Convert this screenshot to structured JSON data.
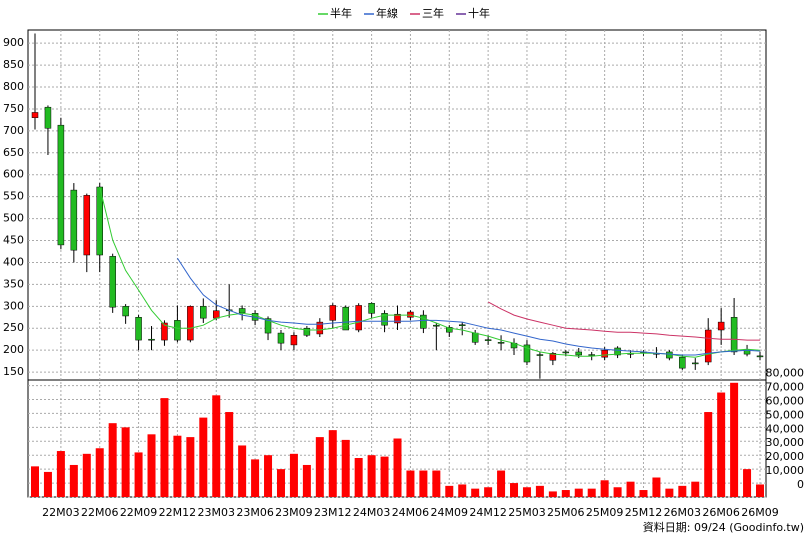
{
  "chart_data": {
    "type": "candlestick",
    "categories": [
      null,
      null,
      "22M03",
      null,
      null,
      "22M06",
      null,
      null,
      "22M09",
      null,
      null,
      "22M12",
      null,
      null,
      "23M03",
      null,
      null,
      "23M06",
      null,
      null,
      "23M09",
      null,
      null,
      "23M12",
      null,
      null,
      "24M03",
      null,
      null,
      "24M06",
      null,
      null,
      "24M09",
      null,
      null,
      "24M12",
      null,
      null,
      "25M03",
      null,
      null,
      "25M06",
      null,
      null,
      "25M09",
      null,
      null,
      "25M12",
      null,
      null,
      "26M03",
      null,
      null,
      "26M06",
      null,
      null,
      "26M09"
    ],
    "open": [
      730,
      754,
      713,
      565,
      417,
      572,
      414,
      300,
      275,
      225,
      223,
      268,
      223,
      300,
      273,
      292,
      295,
      284,
      272,
      239,
      212,
      250,
      237,
      268,
      298,
      246,
      307,
      284,
      262,
      275,
      280,
      257,
      252,
      258,
      239,
      224,
      218,
      216,
      212,
      190,
      177,
      196,
      196,
      190,
      184,
      205,
      193,
      196,
      193,
      196,
      184,
      171,
      173,
      246,
      275,
      202,
      187
    ],
    "high": [
      922,
      758,
      730,
      581,
      557,
      581,
      420,
      305,
      280,
      255,
      268,
      302,
      302,
      318,
      314,
      350,
      302,
      291,
      277,
      246,
      241,
      255,
      273,
      307,
      302,
      307,
      309,
      291,
      302,
      291,
      291,
      262,
      257,
      264,
      246,
      234,
      234,
      227,
      223,
      196,
      196,
      200,
      205,
      196,
      207,
      209,
      200,
      200,
      207,
      200,
      189,
      182,
      273,
      296,
      319,
      212,
      196
    ],
    "low": [
      703,
      645,
      430,
      400,
      378,
      378,
      285,
      260,
      200,
      200,
      210,
      218,
      218,
      262,
      268,
      274,
      268,
      257,
      223,
      200,
      200,
      230,
      230,
      250,
      246,
      241,
      273,
      241,
      246,
      268,
      239,
      200,
      230,
      234,
      212,
      212,
      200,
      189,
      166,
      135,
      166,
      186,
      182,
      177,
      177,
      182,
      182,
      186,
      182,
      177,
      155,
      155,
      166,
      212,
      189,
      186,
      177
    ],
    "close": [
      742,
      706,
      440,
      428,
      553,
      417,
      298,
      278,
      223,
      223,
      262,
      223,
      300,
      273,
      290,
      290,
      285,
      268,
      239,
      216,
      234,
      234,
      264,
      302,
      246,
      302,
      284,
      257,
      282,
      287,
      250,
      255,
      241,
      256,
      218,
      223,
      216,
      205,
      173,
      189,
      193,
      195,
      189,
      189,
      200,
      189,
      191,
      194,
      192,
      182,
      159,
      170,
      246,
      264,
      196,
      191,
      186
    ],
    "up_color": "#ff0000",
    "down_color": "#22bb22",
    "ylim": [
      132,
      930
    ],
    "yticks": [
      150,
      200,
      250,
      300,
      350,
      400,
      450,
      500,
      550,
      600,
      650,
      700,
      750,
      800,
      850,
      900
    ],
    "grid": true,
    "series": [
      {
        "name": "半年",
        "color": "#33cc33",
        "values": [
          null,
          null,
          null,
          null,
          null,
          572,
          451,
          382,
          337,
          291,
          257,
          250,
          250,
          257,
          273,
          280,
          284,
          280,
          268,
          257,
          250,
          246,
          246,
          250,
          257,
          264,
          273,
          280,
          280,
          280,
          273,
          262,
          250,
          246,
          239,
          232,
          223,
          216,
          205,
          196,
          191,
          189,
          186,
          186,
          189,
          191,
          193,
          193,
          193,
          191,
          186,
          184,
          191,
          196,
          200,
          202,
          200
        ]
      },
      {
        "name": "年線",
        "color": "#3366cc",
        "values": [
          null,
          null,
          null,
          null,
          null,
          null,
          null,
          null,
          null,
          null,
          null,
          410,
          364,
          326,
          303,
          291,
          280,
          275,
          268,
          264,
          262,
          259,
          259,
          262,
          264,
          266,
          266,
          266,
          266,
          266,
          268,
          268,
          266,
          264,
          257,
          250,
          246,
          239,
          232,
          225,
          221,
          214,
          209,
          205,
          202,
          200,
          198,
          196,
          193,
          191,
          189,
          189,
          193,
          196,
          198,
          200,
          198
        ]
      },
      {
        "name": "三年",
        "color": "#cc3366",
        "values": [
          null,
          null,
          null,
          null,
          null,
          null,
          null,
          null,
          null,
          null,
          null,
          null,
          null,
          null,
          null,
          null,
          null,
          null,
          null,
          null,
          null,
          null,
          null,
          null,
          null,
          null,
          null,
          null,
          null,
          null,
          null,
          null,
          null,
          null,
          null,
          310,
          294,
          280,
          271,
          264,
          257,
          250,
          248,
          246,
          243,
          241,
          241,
          239,
          237,
          234,
          232,
          230,
          227,
          225,
          225,
          223,
          223
        ]
      },
      {
        "name": "十年",
        "color": "#663399",
        "values": [
          null,
          null,
          null,
          null,
          null,
          null,
          null,
          null,
          null,
          null,
          null,
          null,
          null,
          null,
          null,
          null,
          null,
          null,
          null,
          null,
          null,
          null,
          null,
          null,
          null,
          null,
          null,
          null,
          null,
          null,
          null,
          null,
          null,
          null,
          null,
          null,
          null,
          null,
          null,
          null,
          null,
          null,
          null,
          null,
          null,
          null,
          null,
          null,
          null,
          null,
          null,
          null,
          null,
          null,
          null,
          null,
          null
        ]
      }
    ],
    "volume": {
      "color": "#ff0000",
      "values": [
        22000,
        18000,
        33000,
        23000,
        31000,
        35000,
        53000,
        50000,
        32000,
        45000,
        71000,
        44000,
        43000,
        57000,
        73000,
        61000,
        37000,
        27000,
        30000,
        20000,
        31000,
        23000,
        43000,
        48000,
        41000,
        28000,
        30000,
        29000,
        42000,
        19000,
        19000,
        19000,
        8000,
        9000,
        6000,
        7000,
        19000,
        10000,
        7000,
        8000,
        4000,
        5000,
        6000,
        6000,
        12000,
        7000,
        11000,
        5000,
        14000,
        6000,
        8000,
        11000,
        61000,
        75000,
        82000,
        20000,
        9000
      ],
      "ylim": [
        0,
        84000
      ],
      "yticks": [
        0,
        {
          "value": 10000,
          "label": "10,000"
        },
        {
          "value": 20000,
          "label": "20,000"
        },
        {
          "value": 30000,
          "label": "30,000"
        },
        {
          "value": 40000,
          "label": "40,000"
        },
        {
          "value": 50000,
          "label": "50,000"
        },
        {
          "value": 60000,
          "label": "60,000"
        },
        {
          "value": 70000,
          "label": "70,000"
        },
        {
          "value": 80000,
          "label": "80,000"
        }
      ]
    },
    "footer": "資料日期: 09/24 (Goodinfo.tw)"
  }
}
